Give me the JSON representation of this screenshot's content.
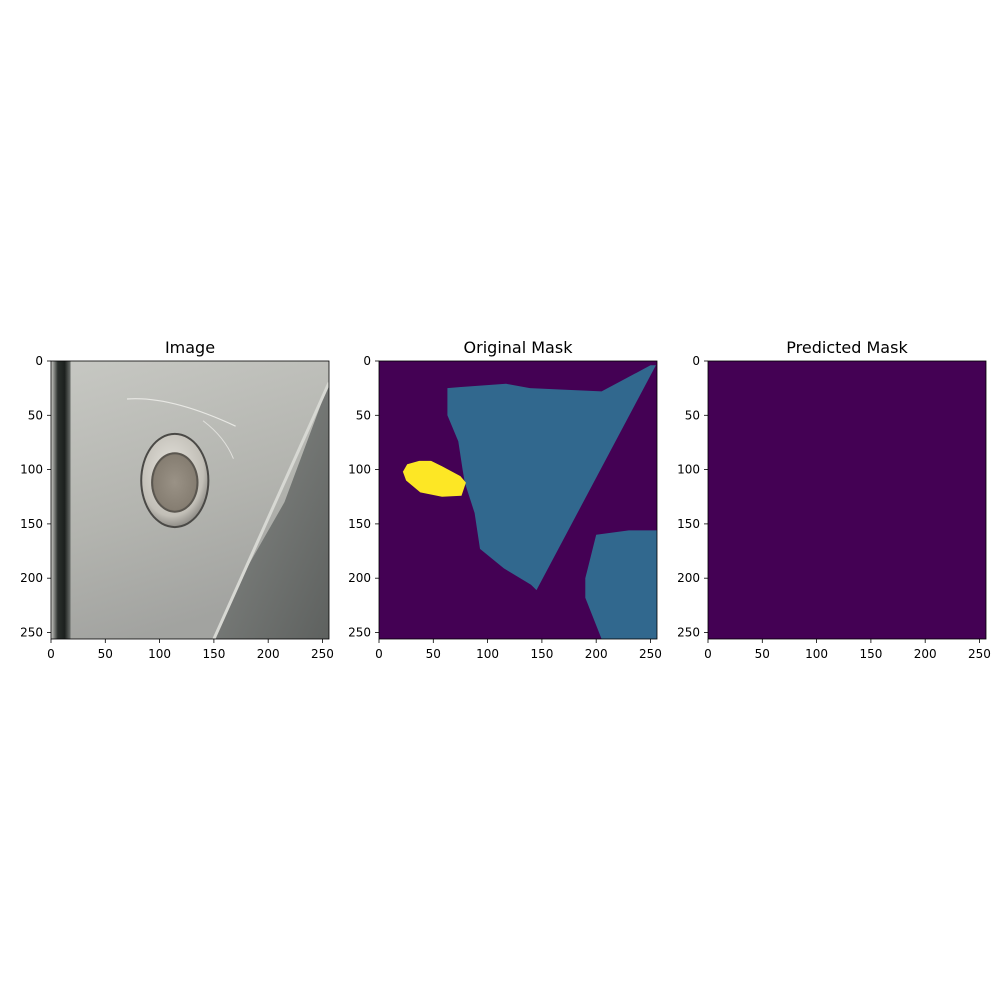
{
  "chart_data": [
    {
      "type": "image",
      "title": "Image",
      "xlim": [
        0,
        256
      ],
      "ylim": [
        256,
        0
      ],
      "xticks": [
        0,
        50,
        100,
        150,
        200,
        250
      ],
      "yticks": [
        0,
        50,
        100,
        150,
        200,
        250
      ],
      "scene": {
        "description_colors": {
          "left_edge_dark": "#1e2220",
          "body_light": "#bfc0bb",
          "body_mid": "#a9aaa6",
          "lower_right_dark": "#6f726f",
          "sensor_ring": "#d8d6cf",
          "sensor_inner": "#8f877b"
        },
        "sensor_center": [
          114,
          110
        ],
        "sensor_radii": [
          30,
          42
        ],
        "sensor_inner_radii": [
          20,
          26
        ]
      }
    },
    {
      "type": "heatmap",
      "title": "Original Mask",
      "xlim": [
        0,
        256
      ],
      "ylim": [
        256,
        0
      ],
      "xticks": [
        0,
        50,
        100,
        150,
        200,
        250
      ],
      "yticks": [
        0,
        50,
        100,
        150,
        200,
        250
      ],
      "background_color": "#440154",
      "regions": [
        {
          "class_color": "#31688e",
          "polygon": [
            [
              63,
              25
            ],
            [
              74,
              24
            ],
            [
              117,
              21
            ],
            [
              139,
              25
            ],
            [
              205,
              28
            ],
            [
              250,
              4
            ],
            [
              255,
              4
            ],
            [
              145,
              211
            ],
            [
              140,
              206
            ],
            [
              115,
              191
            ],
            [
              93,
              173
            ],
            [
              88,
              140
            ],
            [
              79,
              112
            ],
            [
              77,
              100
            ],
            [
              73,
              74
            ],
            [
              63,
              50
            ]
          ]
        },
        {
          "class_color": "#31688e",
          "polygon": [
            [
              200,
              160
            ],
            [
              230,
              156
            ],
            [
              256,
              156
            ],
            [
              256,
              256
            ],
            [
              205,
              256
            ],
            [
              190,
              218
            ],
            [
              190,
              200
            ]
          ]
        },
        {
          "class_color": "#fde725",
          "polygon": [
            [
              26,
              95
            ],
            [
              37,
              92
            ],
            [
              48,
              92
            ],
            [
              58,
              97
            ],
            [
              75,
              106
            ],
            [
              80,
              112
            ],
            [
              76,
              124
            ],
            [
              58,
              125
            ],
            [
              38,
              121
            ],
            [
              25,
              110
            ],
            [
              22,
              102
            ]
          ]
        }
      ]
    },
    {
      "type": "heatmap",
      "title": "Predicted Mask",
      "xlim": [
        0,
        256
      ],
      "ylim": [
        256,
        0
      ],
      "xticks": [
        0,
        50,
        100,
        150,
        200,
        250
      ],
      "yticks": [
        0,
        50,
        100,
        150,
        200,
        250
      ],
      "background_color": "#440154",
      "regions": []
    }
  ]
}
